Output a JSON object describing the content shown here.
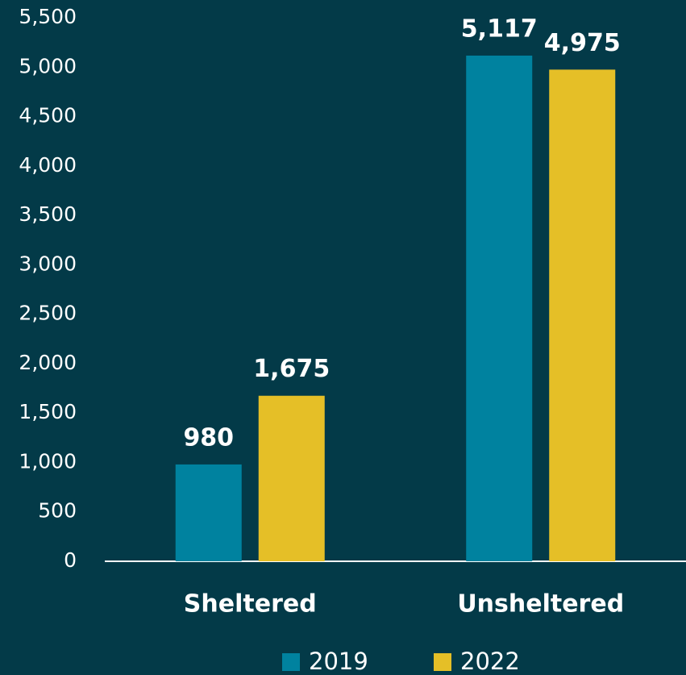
{
  "chart_data": {
    "type": "bar",
    "categories": [
      "Sheltered",
      "Unsheltered"
    ],
    "series": [
      {
        "name": "2019",
        "color": "#00829f",
        "values": [
          980,
          5117
        ],
        "value_labels": [
          "980",
          "5,117"
        ]
      },
      {
        "name": "2022",
        "color": "#e5bf27",
        "values": [
          1675,
          4975
        ],
        "value_labels": [
          "1,675",
          "4,975"
        ]
      }
    ],
    "ylim": [
      0,
      5500
    ],
    "yticks": [
      0,
      500,
      {
        "value": 1000,
        "label": "1,000"
      },
      {
        "value": 1500,
        "label": "1,500"
      },
      {
        "value": 2000,
        "label": "2,000"
      },
      {
        "value": 2500,
        "label": "2,500"
      },
      {
        "value": 3000,
        "label": "3,000"
      },
      {
        "value": 3500,
        "label": "3,500"
      },
      {
        "value": 4000,
        "label": "4,000"
      },
      {
        "value": 4500,
        "label": "4,500"
      },
      {
        "value": 5000,
        "label": "5,000"
      },
      {
        "value": 5500,
        "label": "5,500"
      }
    ],
    "grid": false,
    "legend": "bottom"
  }
}
